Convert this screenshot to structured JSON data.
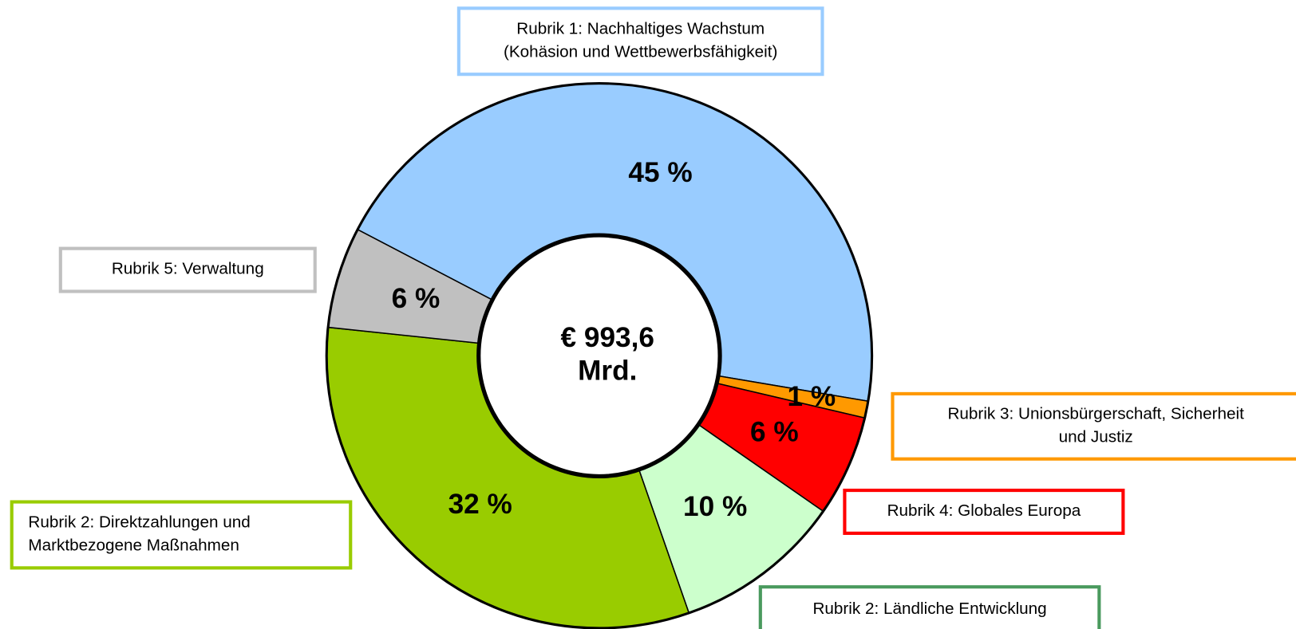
{
  "chart_data": {
    "type": "donut",
    "categories": [
      "Rubrik 1: Nachhaltiges Wachstum\n(Kohäsion und Wettbewerbsfähigkeit)",
      "Rubrik 3: Unionsbürgerschaft, Sicherheit\nund Justiz",
      "Rubrik 4: Globales Europa",
      "Rubrik 2: Ländliche Entwicklung",
      "Rubrik 2: Direktzahlungen und\nMarktbezogene Maßnahmen",
      "Rubrik 5: Verwaltung"
    ],
    "values": [
      45,
      1,
      6,
      10,
      32,
      6
    ],
    "value_labels": [
      "45 %",
      "1 %",
      "6 %",
      "10 %",
      "32 %",
      "6 %"
    ],
    "colors": [
      "#99ccff",
      "#ff9900",
      "#ff0000",
      "#ccffcc",
      "#99cc00",
      "#c0c0c0"
    ],
    "label_border_colors": [
      "#99ccff",
      "#ff9900",
      "#ff0000",
      "#4a9a5e",
      "#99cc00",
      "#c0c0c0"
    ],
    "center_label": [
      "€ 993,6",
      "Mrd."
    ]
  }
}
